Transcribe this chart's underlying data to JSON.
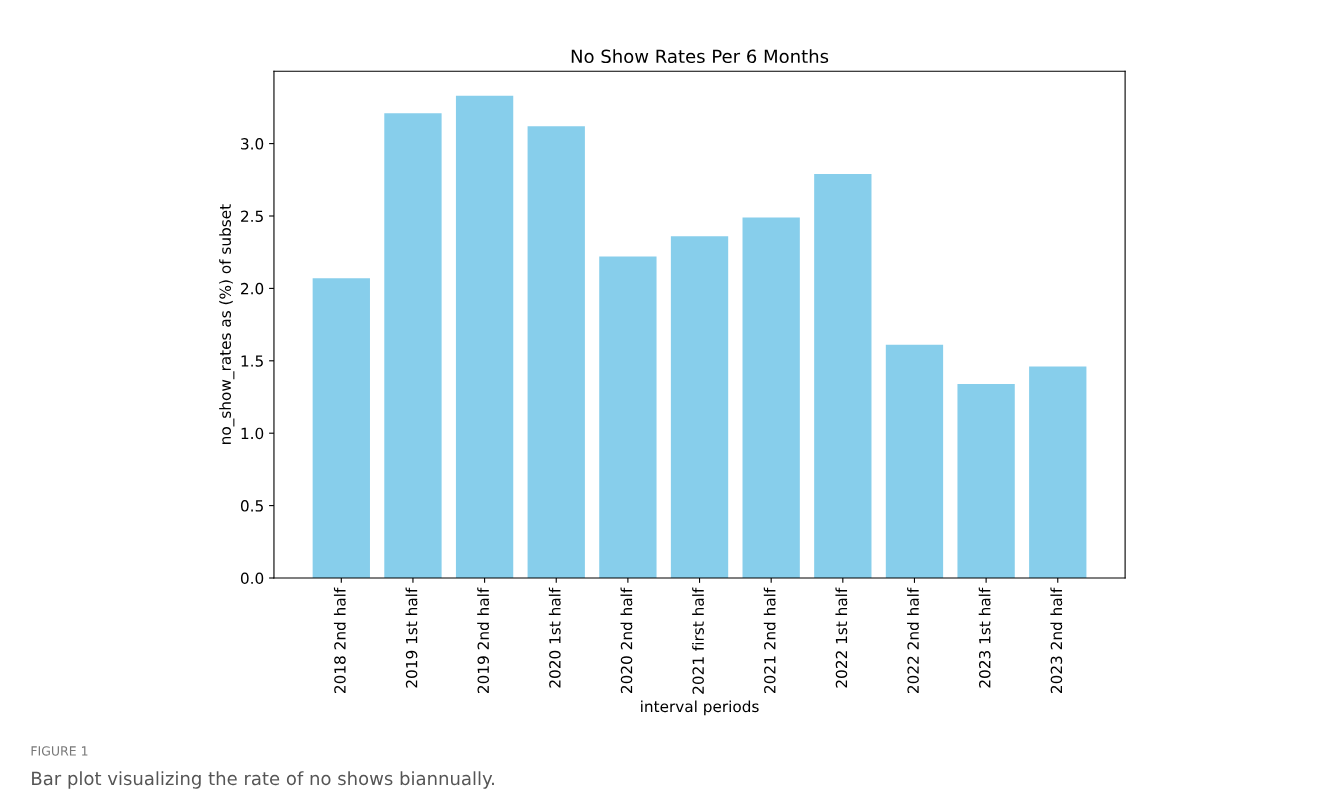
{
  "chart_data": {
    "type": "bar",
    "title": "No Show Rates Per 6 Months",
    "xlabel": "interval periods",
    "ylabel": "no_show_rates as (%) of subset",
    "categories": [
      "2018 2nd half",
      "2019 1st half",
      "2019 2nd half",
      "2020 1st half",
      "2020 2nd half",
      "2021 first half",
      "2021 2nd half",
      "2022 1st half",
      "2022 2nd half",
      "2023 1st half",
      "2023 2nd half"
    ],
    "values": [
      2.07,
      3.21,
      3.33,
      3.12,
      2.22,
      2.36,
      2.49,
      2.79,
      1.61,
      1.34,
      1.46
    ],
    "color": "#87ceeb",
    "ylim": [
      0,
      3.5
    ],
    "yticks": [
      {
        "value": 0,
        "label": "0.0"
      },
      {
        "value": 0.5,
        "label": "0.5"
      },
      {
        "value": 1,
        "label": "1.0"
      },
      {
        "value": 1.5,
        "label": "1.5"
      },
      {
        "value": 2,
        "label": "2.0"
      },
      {
        "value": 2.5,
        "label": "2.5"
      },
      {
        "value": 3,
        "label": "3.0"
      }
    ],
    "grid": false,
    "annotations": [
      "FIGURE 1",
      "Bar plot visualizing the rate of no shows biannually."
    ]
  }
}
